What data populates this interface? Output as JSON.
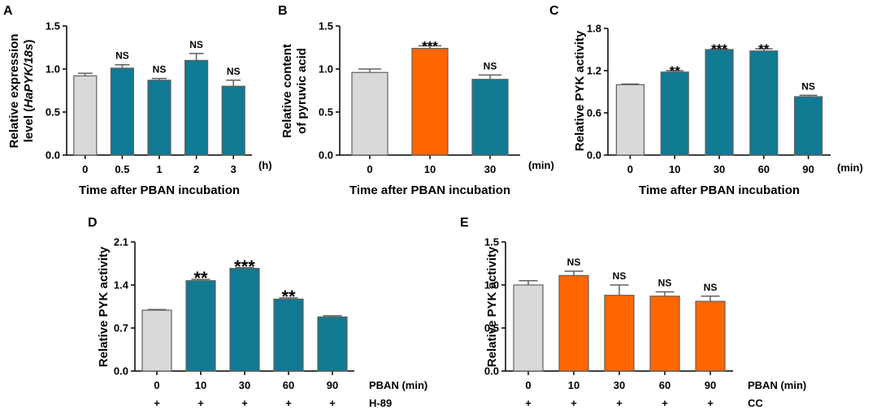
{
  "colors": {
    "control": "#d9d9d9",
    "teal": "#117a93",
    "orange": "#ff6600",
    "bar_stroke": "#606060",
    "error": "#606060"
  },
  "chart_data": [
    {
      "panel": "A",
      "type": "bar",
      "categories": [
        "0",
        "0.5",
        "1",
        "2",
        "3"
      ],
      "values": [
        0.92,
        1.01,
        0.87,
        1.1,
        0.8
      ],
      "errors": [
        0.03,
        0.04,
        0.02,
        0.08,
        0.07
      ],
      "colors": [
        "control",
        "teal",
        "teal",
        "teal",
        "teal"
      ],
      "annotations": [
        "",
        "NS",
        "NS",
        "NS",
        "NS"
      ],
      "ylabel_line1": "Relative expression",
      "ylabel_line2_prefix": "level (",
      "ylabel_line2_italic": "HaPYK/18s",
      "ylabel_line2_suffix": ")",
      "xlabel": "Time after PBAN incubation",
      "unit": "(h)",
      "ylim": [
        0,
        1.5
      ],
      "yticks": [
        "0.0",
        "0.5",
        "1.0",
        "1.5"
      ]
    },
    {
      "panel": "B",
      "type": "bar",
      "categories": [
        "0",
        "10",
        "30"
      ],
      "values": [
        0.96,
        1.24,
        0.88
      ],
      "errors": [
        0.04,
        0.03,
        0.05
      ],
      "colors": [
        "control",
        "orange",
        "teal"
      ],
      "annotations": [
        "",
        "***",
        "NS"
      ],
      "ylabel_line1": "Relative content",
      "ylabel_line2": "of pyruvic acid",
      "xlabel": "Time after PBAN incubation",
      "unit": "(min)",
      "ylim": [
        0,
        1.5
      ],
      "yticks": [
        "0.0",
        "0.5",
        "1.0",
        "1.5"
      ]
    },
    {
      "panel": "C",
      "type": "bar",
      "categories": [
        "0",
        "10",
        "30",
        "60",
        "90"
      ],
      "values": [
        1.0,
        1.18,
        1.5,
        1.48,
        0.83
      ],
      "errors": [
        0.01,
        0.02,
        0.01,
        0.03,
        0.02
      ],
      "colors": [
        "control",
        "teal",
        "teal",
        "teal",
        "teal"
      ],
      "annotations": [
        "",
        "**",
        "***",
        "**",
        "NS"
      ],
      "ylabel": "Relative PYK activity",
      "xlabel": "Time after PBAN incubation",
      "unit": "(min)",
      "ylim": [
        0,
        1.8
      ],
      "yticks": [
        "0.0",
        "0.6",
        "1.2",
        "1.8"
      ]
    },
    {
      "panel": "D",
      "type": "bar",
      "categories": [
        "0",
        "10",
        "30",
        "60",
        "90"
      ],
      "values": [
        0.99,
        1.47,
        1.67,
        1.17,
        0.88
      ],
      "errors": [
        0.01,
        0.02,
        0.01,
        0.02,
        0.02
      ],
      "colors": [
        "control",
        "teal",
        "teal",
        "teal",
        "teal"
      ],
      "annotations": [
        "",
        "**",
        "***",
        "**",
        ""
      ],
      "ylabel": "Relative PYK activity",
      "unit": "PBAN (min)",
      "plus_row": [
        "+",
        "+",
        "+",
        "+",
        "+"
      ],
      "treatment": "H-89",
      "ylim": [
        0,
        2.1
      ],
      "yticks": [
        "0.0",
        "0.7",
        "1.4",
        "2.1"
      ]
    },
    {
      "panel": "E",
      "type": "bar",
      "categories": [
        "0",
        "10",
        "30",
        "60",
        "90"
      ],
      "values": [
        1.0,
        1.11,
        0.88,
        0.87,
        0.81
      ],
      "errors": [
        0.05,
        0.05,
        0.12,
        0.05,
        0.06
      ],
      "colors": [
        "control",
        "orange",
        "orange",
        "orange",
        "orange"
      ],
      "annotations": [
        "",
        "NS",
        "NS",
        "NS",
        "NS"
      ],
      "ylabel": "Relative PYK activity",
      "unit": "PBAN (min)",
      "plus_row": [
        "+",
        "+",
        "+",
        "+",
        "+"
      ],
      "treatment": "CC",
      "ylim": [
        0,
        1.5
      ],
      "yticks": [
        "0.0",
        "0.5",
        "1.0",
        "1.5"
      ]
    }
  ]
}
